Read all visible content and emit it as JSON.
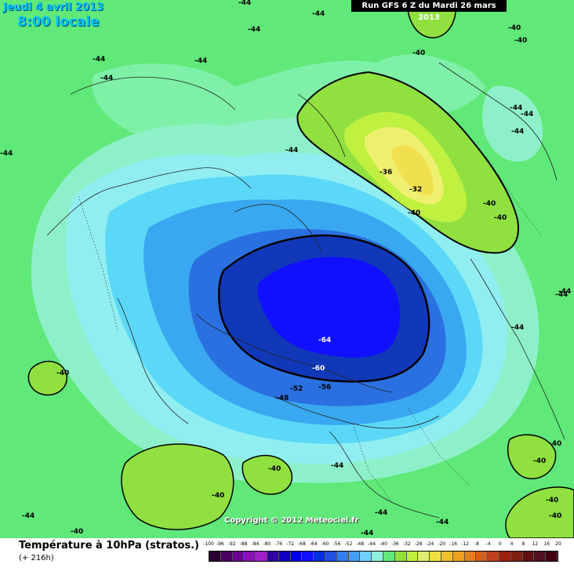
{
  "header": {
    "date": "Jeudi 4 avril 2013",
    "time": "8:00 locale",
    "run": "Run GFS 6 Z du Mardi 26 mars 2013"
  },
  "copyright": "Copyright © 2012 Meteociel.fr",
  "footer": {
    "title": "Température à 10hPa (stratos.)",
    "lead": "(+ 216h)"
  },
  "scale": {
    "labels": [
      "-100",
      "-96",
      "-92",
      "-88",
      "-84",
      "-80",
      "-76",
      "-72",
      "-68",
      "-64",
      "-60",
      "-56",
      "-52",
      "-48",
      "-44",
      "-40",
      "-36",
      "-32",
      "-28",
      "-24",
      "-20",
      "-16",
      "-12",
      "-8",
      "-4",
      "0",
      "4",
      "8",
      "12",
      "16",
      "20"
    ],
    "colors": [
      "#2a0030",
      "#4a0060",
      "#6a0090",
      "#8a10b0",
      "#a020c8",
      "#3000a0",
      "#1000c0",
      "#0000e8",
      "#1010ff",
      "#0030d8",
      "#2050e0",
      "#3080f0",
      "#40a0f8",
      "#70d0ff",
      "#90f0e0",
      "#60e878",
      "#90e040",
      "#c0f040",
      "#e0f060",
      "#f0e040",
      "#f0c030",
      "#f0a020",
      "#e08020",
      "#d06020",
      "#c04020",
      "#a02010",
      "#802010",
      "#601010",
      "#501020",
      "#400010"
    ]
  },
  "map_labels": {
    "l01": "-44",
    "l02": "-44",
    "l03": "-44",
    "l04": "-44",
    "l05": "-44",
    "l06": "-44",
    "l07": "-44",
    "l08": "-44",
    "l09": "-44",
    "l10": "-40",
    "l11": "-40",
    "l12": "-40",
    "l13": "-44",
    "l14": "-44",
    "l15": "-44",
    "l16": "-36",
    "l17": "-32",
    "l18": "-40",
    "l19": "-40",
    "l20": "-40",
    "l21": "-44",
    "l22": "-44",
    "l23": "-40",
    "l24": "-64",
    "l25": "-60",
    "l26": "-56",
    "l27": "-52",
    "l28": "-48",
    "l29": "-40",
    "l30": "-40",
    "l31": "-44",
    "l32": "-40",
    "l33": "-44",
    "l34": "-40",
    "l35": "-44",
    "l36": "-44",
    "l37": "-40",
    "l38": "-40",
    "l39": "-40",
    "l40": "-44"
  }
}
